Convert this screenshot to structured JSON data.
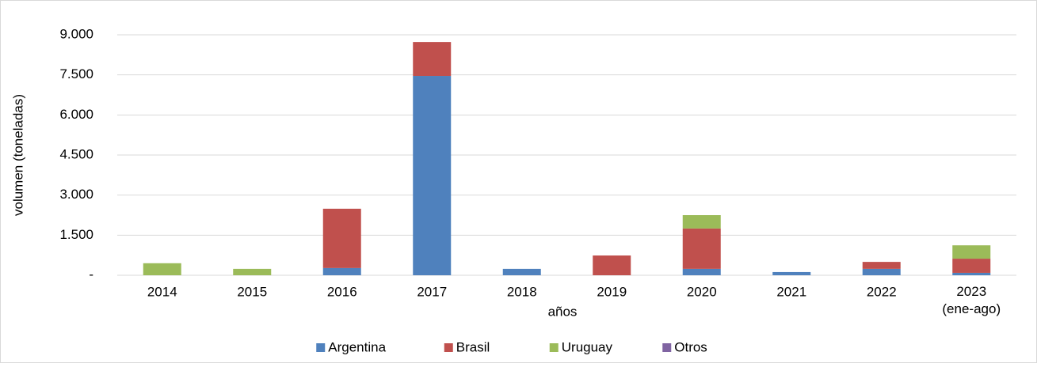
{
  "chart_data": {
    "type": "stacked_bar",
    "x_label": "años",
    "y_label": "volumen (toneladas)",
    "categories": [
      "2014",
      "2015",
      "2016",
      "2017",
      "2018",
      "2019",
      "2020",
      "2021",
      "2022",
      "2023\n(ene-ago)"
    ],
    "series": [
      {
        "name": "Argentina",
        "color": "#4f81bd",
        "values": [
          0,
          0,
          270,
          7460,
          240,
          0,
          240,
          120,
          240,
          90
        ]
      },
      {
        "name": "Brasil",
        "color": "#c0504d",
        "values": [
          0,
          0,
          2220,
          1270,
          0,
          740,
          1510,
          0,
          260,
          530
        ]
      },
      {
        "name": "Uruguay",
        "color": "#9bbb59",
        "values": [
          450,
          240,
          0,
          0,
          0,
          0,
          500,
          0,
          0,
          500
        ]
      },
      {
        "name": "Otros",
        "color": "#8064a2",
        "values": [
          0,
          0,
          0,
          0,
          0,
          0,
          0,
          0,
          0,
          0
        ]
      }
    ],
    "ylim": [
      0,
      9000
    ],
    "yticks": [
      {
        "value": 0,
        "label": "-"
      },
      {
        "value": 1500,
        "label": "1.500"
      },
      {
        "value": 3000,
        "label": "3.000"
      },
      {
        "value": 4500,
        "label": "4.500"
      },
      {
        "value": 6000,
        "label": "6.000"
      },
      {
        "value": 7500,
        "label": "7.500"
      },
      {
        "value": 9000,
        "label": "9.000"
      }
    ],
    "grid": true,
    "legend": "bottom"
  }
}
